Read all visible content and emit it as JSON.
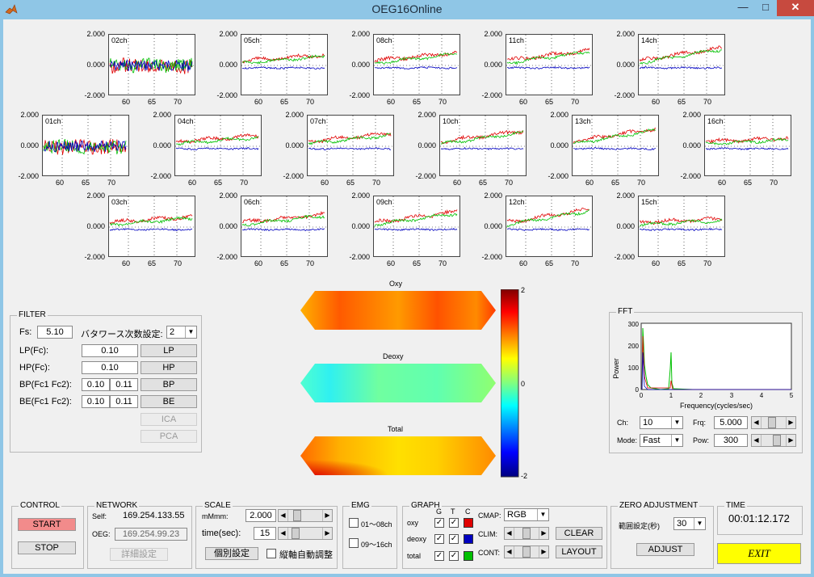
{
  "window": {
    "title": "OEG16Online",
    "minimize": "—",
    "maximize": "□",
    "close": "✕"
  },
  "colors": {
    "oxy": "#e00000",
    "deoxy": "#0000c0",
    "total": "#00c000",
    "start": "#f28b8b",
    "exit": "#ffff00"
  },
  "plots": [
    {
      "ch": "02ch",
      "y": [
        "2.000",
        "0.000",
        "-2.000"
      ],
      "x": [
        "60",
        "65",
        "70"
      ]
    },
    {
      "ch": "05ch",
      "y": [
        "2.000",
        "0.000",
        "-2.000"
      ],
      "x": [
        "60",
        "65",
        "70"
      ]
    },
    {
      "ch": "08ch",
      "y": [
        "2.000",
        "0.000",
        "-2.000"
      ],
      "x": [
        "60",
        "65",
        "70"
      ]
    },
    {
      "ch": "11ch",
      "y": [
        "2.000",
        "0.000",
        "-2.000"
      ],
      "x": [
        "60",
        "65",
        "70"
      ]
    },
    {
      "ch": "14ch",
      "y": [
        "2.000",
        "0.000",
        "-2.000"
      ],
      "x": [
        "60",
        "65",
        "70"
      ]
    },
    {
      "ch": "01ch",
      "y": [
        "2.000",
        "0.000",
        "-2.000"
      ],
      "x": [
        "60",
        "65",
        "70"
      ]
    },
    {
      "ch": "04ch",
      "y": [
        "2.000",
        "0.000",
        "-2.000"
      ],
      "x": [
        "60",
        "65",
        "70"
      ]
    },
    {
      "ch": "07ch",
      "y": [
        "2.000",
        "0.000",
        "-2.000"
      ],
      "x": [
        "60",
        "65",
        "70"
      ]
    },
    {
      "ch": "10ch",
      "y": [
        "2.000",
        "0.000",
        "-2.000"
      ],
      "x": [
        "60",
        "65",
        "70"
      ]
    },
    {
      "ch": "13ch",
      "y": [
        "2.000",
        "0.000",
        "-2.000"
      ],
      "x": [
        "60",
        "65",
        "70"
      ]
    },
    {
      "ch": "16ch",
      "y": [
        "2.000",
        "0.000",
        "-2.000"
      ],
      "x": [
        "60",
        "65",
        "70"
      ]
    },
    {
      "ch": "03ch",
      "y": [
        "2.000",
        "0.000",
        "-2.000"
      ],
      "x": [
        "60",
        "65",
        "70"
      ]
    },
    {
      "ch": "06ch",
      "y": [
        "2.000",
        "0.000",
        "-2.000"
      ],
      "x": [
        "60",
        "65",
        "70"
      ]
    },
    {
      "ch": "09ch",
      "y": [
        "2.000",
        "0.000",
        "-2.000"
      ],
      "x": [
        "60",
        "65",
        "70"
      ]
    },
    {
      "ch": "12ch",
      "y": [
        "2.000",
        "0.000",
        "-2.000"
      ],
      "x": [
        "60",
        "65",
        "70"
      ]
    },
    {
      "ch": "15ch",
      "y": [
        "2.000",
        "0.000",
        "-2.000"
      ],
      "x": [
        "60",
        "65",
        "70"
      ]
    }
  ],
  "maps": {
    "oxy": "Oxy",
    "deoxy": "Deoxy",
    "total": "Total"
  },
  "colorbar": {
    "top": "2",
    "mid": "0",
    "bottom": "-2"
  },
  "filter": {
    "title": "FILTER",
    "fs_label": "Fs:",
    "fs_value": "5.10",
    "butter_label": "バタワース次数設定:",
    "butter_value": "2",
    "lp_label": "LP(Fc):",
    "lp_value": "0.10",
    "lp_btn": "LP",
    "hp_label": "HP(Fc):",
    "hp_value": "0.10",
    "hp_btn": "HP",
    "bp_label": "BP(Fc1 Fc2):",
    "bp_v1": "0.10",
    "bp_v2": "0.11",
    "bp_btn": "BP",
    "be_label": "BE(Fc1 Fc2):",
    "be_v1": "0.10",
    "be_v2": "0.11",
    "be_btn": "BE",
    "ica_btn": "ICA",
    "pca_btn": "PCA"
  },
  "fft": {
    "title": "FFT",
    "ylabel": "Power",
    "xlabel": "Frequency(cycles/sec)",
    "yticks": [
      "300",
      "200",
      "100",
      "0"
    ],
    "xticks": [
      "0",
      "1",
      "2",
      "3",
      "4",
      "5"
    ],
    "ch_label": "Ch:",
    "ch_value": "10",
    "frq_label": "Frq:",
    "frq_value": "5.000",
    "mode_label": "Mode:",
    "mode_value": "Fast",
    "pow_label": "Pow:",
    "pow_value": "300"
  },
  "control": {
    "title": "CONTROL",
    "start": "START",
    "stop": "STOP"
  },
  "network": {
    "title": "NETWORK",
    "self_label": "Self:",
    "self_value": "169.254.133.55",
    "oeg_label": "OEG:",
    "oeg_value": "169.254.99.23",
    "detail_btn": "詳細設定"
  },
  "scale": {
    "title": "SCALE",
    "mm_label": "mMmm:",
    "mm_value": "2.000",
    "time_label": "time(sec):",
    "time_value": "15",
    "indiv_btn": "個別設定",
    "auto_label": "縦軸自動調整"
  },
  "emg": {
    "title": "EMG",
    "ch1": "01～08ch",
    "ch2": "09～16ch"
  },
  "graph": {
    "title": "GRAPH",
    "h_g": "G",
    "h_t": "T",
    "h_c": "C",
    "oxy": "oxy",
    "deoxy": "deoxy",
    "total": "total",
    "cmap_label": "CMAP:",
    "cmap_value": "RGB",
    "clim_label": "CLIM:",
    "cont_label": "CONT:",
    "clear_btn": "CLEAR",
    "layout_btn": "LAYOUT"
  },
  "zero": {
    "title": "ZERO ADJUSTMENT",
    "range_label": "範囲設定(秒)",
    "range_value": "30",
    "adjust_btn": "ADJUST"
  },
  "time": {
    "title": "TIME",
    "value": "00:01:12.172"
  },
  "exit_btn": "EXIT"
}
